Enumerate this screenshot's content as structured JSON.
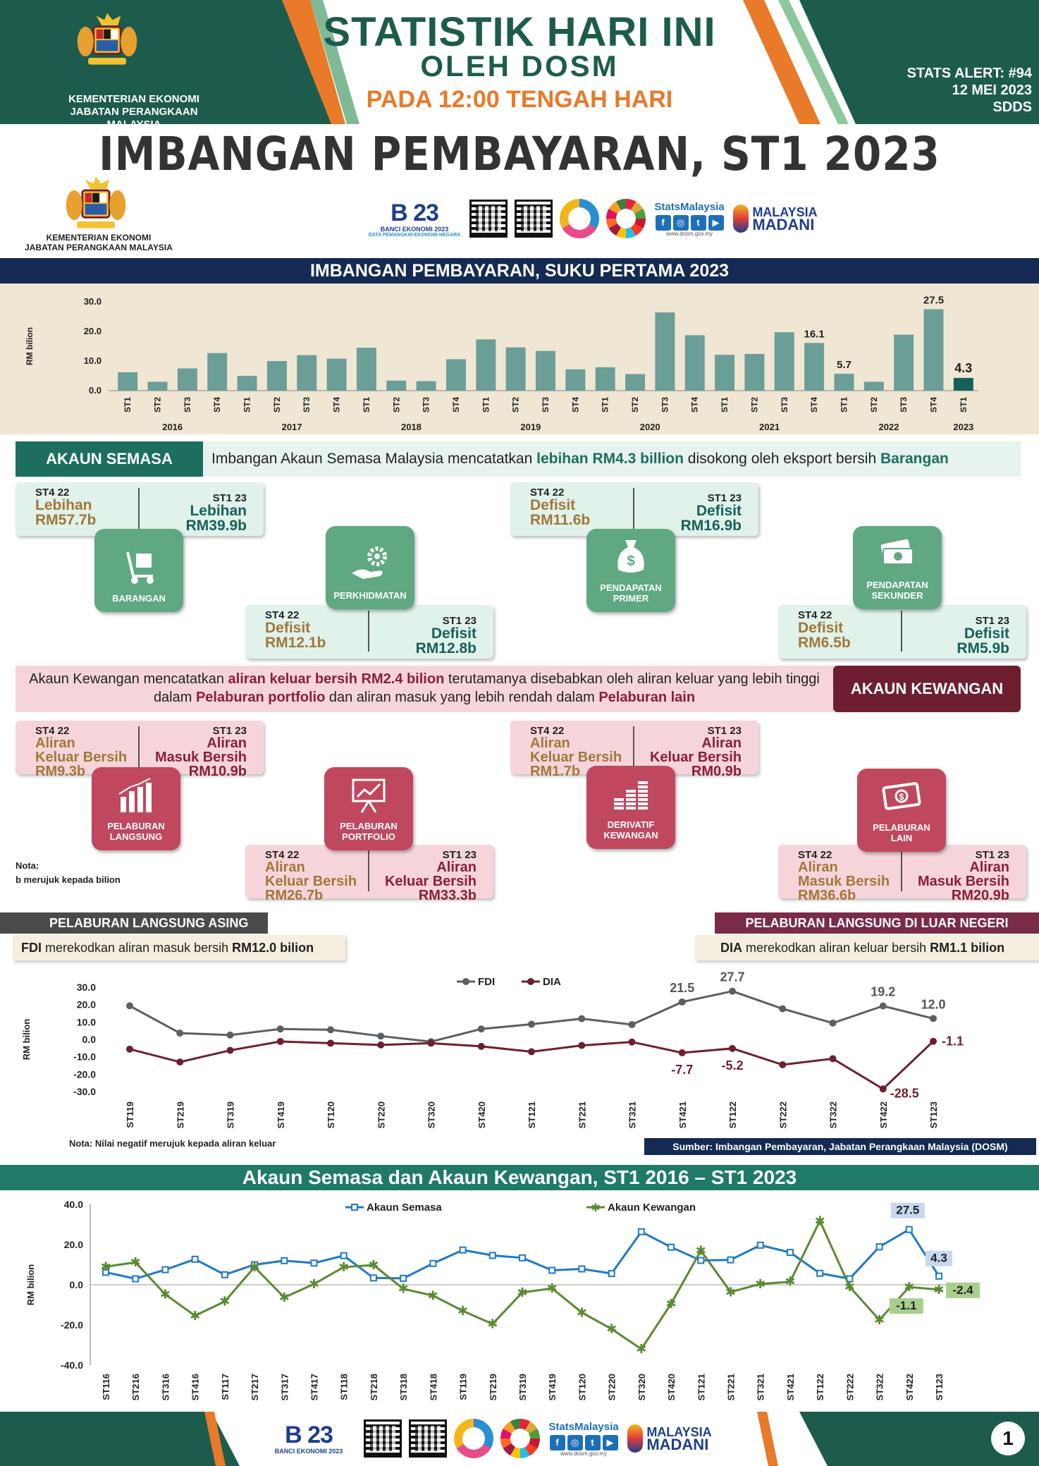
{
  "header": {
    "ministry_line1": "KEMENTERIAN EKONOMI",
    "ministry_line2": "JABATAN PERANGKAAN MALAYSIA",
    "title1": "STATISTIK HARI INI",
    "title2": "OLEH DOSM",
    "title3": "PADA 12:00 TENGAH HARI",
    "alert": "STATS ALERT: #94",
    "date": "12 MEI 2023",
    "code": "SDDS"
  },
  "main_title": "IMBANGAN PEMBAYARAN, ST1 2023",
  "ministry2": {
    "line1": "KEMENTERIAN EKONOMI",
    "line2": "JABATAN PERANGKAAN MALAYSIA"
  },
  "logos": {
    "banci_big": "B 23",
    "banci_line1": "BANCI EKONOMI 2023",
    "banci_line2": "DATA PEMANGKIN EKONOMI NEGARA",
    "stats_malaysia": "StatsMalaysia",
    "stats_url": "www.dosm.gov.my",
    "madani_line1": "MALAYSIA",
    "madani_line2": "MADANI"
  },
  "colors": {
    "navy": "#142a52",
    "dark_green": "#1d5c4c",
    "orange": "#e87a2a",
    "teal_bar": "#6b9e97",
    "highlight_bar": "#17605a",
    "fdi": "#5a5f63",
    "dia": "#6e1f2f",
    "ca_line": "#1f78c8",
    "fa_line": "#5a8a32"
  },
  "bar_section_title": "IMBANGAN PEMBAYARAN, SUKU PERTAMA 2023",
  "chart_data": [
    {
      "type": "bar",
      "title": "IMBANGAN PEMBAYARAN, SUKU PERTAMA 2023",
      "ylabel": "RM bilion",
      "ylim": [
        0,
        30
      ],
      "yticks": [
        "0.0",
        "10.0",
        "20.0",
        "30.0"
      ],
      "categories": [
        "ST1",
        "ST2",
        "ST3",
        "ST4",
        "ST1",
        "ST2",
        "ST3",
        "ST4",
        "ST1",
        "ST2",
        "ST3",
        "ST4",
        "ST1",
        "ST2",
        "ST3",
        "ST4",
        "ST1",
        "ST2",
        "ST3",
        "ST4",
        "ST1",
        "ST2",
        "ST3",
        "ST4",
        "ST1",
        "ST2",
        "ST3",
        "ST4",
        "ST1"
      ],
      "years": [
        {
          "label": "2016",
          "index": 1.5
        },
        {
          "label": "2017",
          "index": 5.5
        },
        {
          "label": "2018",
          "index": 9.5
        },
        {
          "label": "2019",
          "index": 13.5
        },
        {
          "label": "2020",
          "index": 17.5
        },
        {
          "label": "2021",
          "index": 21.5
        },
        {
          "label": "2022",
          "index": 25.5
        },
        {
          "label": "2023",
          "index": 28
        }
      ],
      "values": [
        6.2,
        3.0,
        7.5,
        12.7,
        5.0,
        10.0,
        12.0,
        10.8,
        14.5,
        3.4,
        3.2,
        10.6,
        17.3,
        14.6,
        13.4,
        7.2,
        7.9,
        5.6,
        26.4,
        18.7,
        12.1,
        12.4,
        19.7,
        16.1,
        5.7,
        3.0,
        18.9,
        27.5,
        4.3
      ],
      "data_labels": [
        {
          "index": 23,
          "text": "16.1"
        },
        {
          "index": 24,
          "text": "5.7"
        },
        {
          "index": 27,
          "text": "27.5"
        },
        {
          "index": 28,
          "text": "4.3"
        }
      ],
      "highlight_index": 28
    },
    {
      "type": "line",
      "ylabel": "RM bilion",
      "ylim": [
        -30,
        30
      ],
      "yticks": [
        "30.0",
        "20.0",
        "10.0",
        "0.0",
        "-10.0",
        "-20.0",
        "-30.0"
      ],
      "x": [
        "ST119",
        "ST219",
        "ST319",
        "ST419",
        "ST120",
        "ST220",
        "ST320",
        "ST420",
        "ST121",
        "ST221",
        "ST321",
        "ST421",
        "ST122",
        "ST222",
        "ST322",
        "ST422",
        "ST123"
      ],
      "series": [
        {
          "name": "FDI",
          "values": [
            19.3,
            3.6,
            2.5,
            6.0,
            5.5,
            1.9,
            -1.3,
            6.0,
            8.7,
            11.9,
            8.5,
            21.5,
            27.7,
            17.6,
            9.4,
            19.2,
            12.0
          ]
        },
        {
          "name": "DIA",
          "values": [
            -5.6,
            -13.0,
            -6.3,
            -1.2,
            -2.2,
            -3.2,
            -2.2,
            -4.0,
            -7.1,
            -3.5,
            -1.5,
            -7.7,
            -5.2,
            -14.6,
            -11.1,
            -28.5,
            -1.1
          ]
        }
      ],
      "data_labels": [
        {
          "series": 0,
          "index": 11,
          "text": "21.5"
        },
        {
          "series": 0,
          "index": 12,
          "text": "27.7"
        },
        {
          "series": 0,
          "index": 15,
          "text": "19.2"
        },
        {
          "series": 0,
          "index": 16,
          "text": "12.0"
        },
        {
          "series": 1,
          "index": 11,
          "text": "-7.7"
        },
        {
          "series": 1,
          "index": 12,
          "text": "-5.2"
        },
        {
          "series": 1,
          "index": 15,
          "text": "-28.5"
        },
        {
          "series": 1,
          "index": 16,
          "text": "-1.1"
        }
      ],
      "legend": "top-center"
    },
    {
      "type": "line",
      "title": "Akaun Semasa dan Akaun Kewangan, ST1 2016 – ST1 2023",
      "ylabel": "RM bilion",
      "ylim": [
        -40,
        40
      ],
      "yticks": [
        "40.0",
        "20.0",
        "0.0",
        "-20.0",
        "-40.0"
      ],
      "x": [
        "ST116",
        "ST216",
        "ST316",
        "ST416",
        "ST117",
        "ST217",
        "ST317",
        "ST417",
        "ST118",
        "ST218",
        "ST318",
        "ST418",
        "ST119",
        "ST219",
        "ST319",
        "ST419",
        "ST120",
        "ST220",
        "ST320",
        "ST420",
        "ST121",
        "ST221",
        "ST321",
        "ST421",
        "ST122",
        "ST222",
        "ST322",
        "ST422",
        "ST123"
      ],
      "series": [
        {
          "name": "Akaun Semasa",
          "values": [
            6.2,
            3.0,
            7.5,
            12.7,
            5.0,
            10.0,
            12.0,
            10.8,
            14.5,
            3.4,
            3.2,
            10.6,
            17.3,
            14.6,
            13.4,
            7.2,
            7.9,
            5.6,
            26.4,
            18.7,
            12.1,
            12.4,
            19.7,
            16.1,
            5.7,
            3.0,
            18.9,
            27.5,
            4.3
          ]
        },
        {
          "name": "Akaun Kewangan",
          "values": [
            9.0,
            11.2,
            -4.8,
            -15.4,
            -8.3,
            8.8,
            -6.3,
            0.4,
            8.8,
            9.8,
            -2.0,
            -5.4,
            -13.0,
            -19.5,
            -3.8,
            -1.8,
            -13.8,
            -22.0,
            -32.0,
            -9.4,
            17.0,
            -3.6,
            0.4,
            1.5,
            31.8,
            -1.0,
            -17.5,
            -1.1,
            -2.4
          ]
        }
      ],
      "data_labels": [
        {
          "series": 0,
          "index": 27,
          "text": "27.5"
        },
        {
          "series": 0,
          "index": 28,
          "text": "4.3"
        },
        {
          "series": 1,
          "index": 27,
          "text": "-1.1"
        },
        {
          "series": 1,
          "index": 28,
          "text": "-2.4"
        }
      ],
      "legend": "top-center"
    }
  ],
  "current_account": {
    "tag": "AKAUN SEMASA",
    "text_pre": "Imbangan Akaun Semasa Malaysia mencatatkan ",
    "text_b1": "lebihan RM4.3 billion",
    "text_mid": " disokong oleh eksport bersih ",
    "text_b2": "Barangan",
    "cards": [
      {
        "lq": "ST4 22",
        "lv": "Lebihan\nRM57.7b",
        "rq": "ST1 23",
        "rv": "Lebihan\nRM39.9b"
      },
      {
        "lq": "ST4 22",
        "lv": "Defisit\nRM12.1b",
        "rq": "ST1 23",
        "rv": "Defisit\nRM12.8b"
      },
      {
        "lq": "ST4 22",
        "lv": "Defisit\nRM11.6b",
        "rq": "ST1 23",
        "rv": "Defisit\nRM16.9b"
      },
      {
        "lq": "ST4 22",
        "lv": "Defisit\nRM6.5b",
        "rq": "ST1 23",
        "rv": "Defisit\nRM5.9b"
      }
    ],
    "icons": [
      {
        "label": "BARANGAN",
        "icon": "hand-truck-icon"
      },
      {
        "label": "PERKHIDMATAN",
        "icon": "hand-gear-icon"
      },
      {
        "label": "PENDAPATAN\nPRIMER",
        "icon": "money-bag-icon"
      },
      {
        "label": "PENDAPATAN\nSEKUNDER",
        "icon": "cash-stack-icon"
      }
    ]
  },
  "financial_account": {
    "tag": "AKAUN KEWANGAN",
    "text_pre": "Akaun Kewangan mencatatkan ",
    "text_b1": "aliran keluar bersih RM2.4 bilion",
    "text_mid": " terutamanya  disebabkan oleh aliran keluar yang lebih tinggi dalam ",
    "text_b2": "Pelaburan portfolio",
    "text_mid2": " dan  aliran masuk yang lebih rendah dalam ",
    "text_b3": "Pelaburan lain",
    "cards": [
      {
        "lq": "ST4 22",
        "lv": "Aliran\nKeluar Bersih\nRM9.3b",
        "rq": "ST1 23",
        "rv": "Aliran\nMasuk Bersih\nRM10.9b"
      },
      {
        "lq": "ST4 22",
        "lv": "Aliran\nKeluar Bersih\nRM26.7b",
        "rq": "ST1 23",
        "rv": "Aliran\nKeluar Bersih\nRM33.3b"
      },
      {
        "lq": "ST4 22",
        "lv": "Aliran\nKeluar Bersih\nRM1.7b",
        "rq": "ST1 23",
        "rv": "Aliran\nKeluar Bersih\nRM0.9b"
      },
      {
        "lq": "ST4 22",
        "lv": "Aliran\nMasuk Bersih\nRM36.6b",
        "rq": "ST1 23",
        "rv": "Aliran\nMasuk Bersih\nRM20.9b"
      }
    ],
    "icons": [
      {
        "label": "PELABURAN\nLANGSUNG",
        "icon": "bar-growth-icon"
      },
      {
        "label": "PELABURAN\nPORTFOLIO",
        "icon": "presentation-board-icon"
      },
      {
        "label": "DERIVATIF\nKEWANGAN",
        "icon": "coin-stacks-icon"
      },
      {
        "label": "PELABURAN\nLAIN",
        "icon": "banknote-icon"
      }
    ]
  },
  "nota1": {
    "title": "Nota:",
    "text": "b merujuk kepada bilion"
  },
  "fdi": {
    "tag": "PELABURAN LANGSUNG ASING",
    "note_b": "FDI",
    "note_mid": " merekodkan aliran masuk bersih ",
    "note_b2": "RM12.0 bilion"
  },
  "dia": {
    "tag": "PELABURAN LANGSUNG DI LUAR NEGERI",
    "note_b": "DIA",
    "note_mid": " merekodkan aliran keluar bersih ",
    "note_b2": "RM1.1 bilion"
  },
  "nota2": "Nota: Nilai negatif merujuk kepada aliran keluar",
  "sumber": "Sumber: Imbangan Pembayaran, Jabatan Perangkaan Malaysia (DOSM)",
  "bottom_title": "Akaun Semasa dan Akaun Kewangan, ST1 2016 – ST1 2023",
  "page_number": "1"
}
